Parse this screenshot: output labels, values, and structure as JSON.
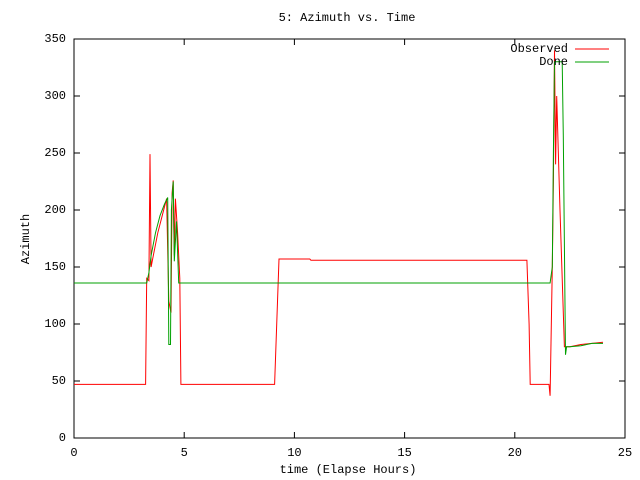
{
  "chart_data": {
    "type": "line",
    "title": "5: Azimuth vs. Time",
    "x_label": "time (Elapse Hours)",
    "y_label": "Azimuth",
    "xlim": [
      0,
      25
    ],
    "ylim": [
      0,
      350
    ],
    "xticks": [
      0,
      5,
      10,
      15,
      20,
      25
    ],
    "yticks": [
      0,
      50,
      100,
      150,
      200,
      250,
      300,
      350
    ],
    "legend": "top-right",
    "series": [
      {
        "name": "Observed",
        "color": "#ff0000",
        "x": [
          0,
          3.25,
          3.3,
          3.4,
          3.45,
          3.5,
          3.6,
          3.8,
          4.0,
          4.2,
          4.3,
          4.4,
          4.45,
          4.5,
          4.55,
          4.6,
          4.7,
          4.8,
          4.85,
          9.1,
          9.3,
          10.7,
          10.75,
          20.55,
          20.65,
          20.7,
          21.55,
          21.6,
          21.7,
          21.75,
          21.8,
          21.85,
          21.9,
          22.05,
          22.15,
          22.25,
          22.5,
          23,
          23.5,
          24
        ],
        "values": [
          47,
          47,
          140,
          138,
          249,
          150,
          160,
          180,
          195,
          210,
          120,
          110,
          215,
          226,
          160,
          210,
          180,
          140,
          47,
          47,
          157,
          157,
          156,
          156,
          100,
          47,
          47,
          37,
          150,
          225,
          340,
          240,
          300,
          200,
          140,
          80,
          80,
          82,
          83,
          84
        ]
      },
      {
        "name": "Done",
        "color": "#00a000",
        "x": [
          0,
          3.3,
          3.4,
          3.5,
          3.7,
          3.9,
          4.1,
          4.25,
          4.3,
          4.38,
          4.42,
          4.5,
          4.55,
          4.65,
          4.75,
          21.6,
          21.7,
          21.75,
          21.8,
          21.9,
          22.15,
          22.2,
          22.3,
          22.35,
          22.5,
          23,
          23.5,
          24
        ],
        "values": [
          136,
          136,
          145,
          160,
          180,
          195,
          205,
          211,
          82,
          82,
          200,
          225,
          155,
          190,
          136,
          136,
          150,
          250,
          330,
          330,
          330,
          265,
          73,
          80,
          80,
          81,
          83,
          83
        ]
      }
    ]
  }
}
